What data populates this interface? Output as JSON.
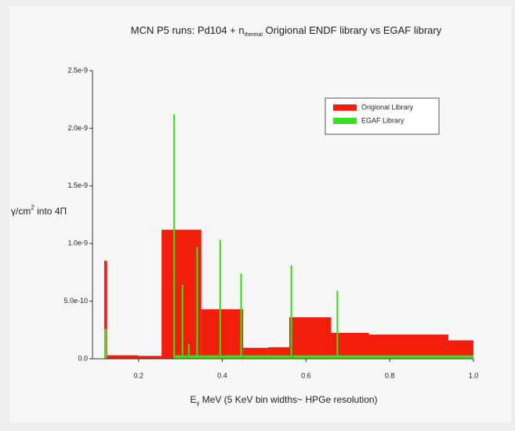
{
  "chart_data": {
    "type": "histogram",
    "title": [
      "MCN P5 runs: Pd104 + n",
      "thermal",
      " Origional ENDF library vs EGAF library"
    ],
    "ylabel": [
      "γ/cm",
      "2",
      " into 4Π"
    ],
    "xlabel": [
      "E",
      "γ",
      " MeV (5 KeV bin widths~ HPGe resolution)"
    ],
    "xlim": [
      0.09,
      1.0
    ],
    "ylim": [
      0,
      2.5e-09
    ],
    "xticks": [
      0.2,
      0.4,
      0.6,
      0.8,
      {
        "value": 1.0,
        "label": "1.0"
      }
    ],
    "yticks": [
      {
        "value": 0,
        "label": "0.0"
      },
      {
        "value": 5e-10,
        "label": "5.0e-10"
      },
      {
        "value": 1e-09,
        "label": "1.0e-9"
      },
      {
        "value": 1.5e-09,
        "label": "1.5e-9"
      },
      {
        "value": 2e-09,
        "label": "2.0e-9"
      },
      {
        "value": 2.5e-09,
        "label": "2.5e-9"
      }
    ],
    "legend": "upper right",
    "series": [
      {
        "name": "Origional Library",
        "color": "#f01e0a",
        "bins": [
          0.118,
          0.125,
          0.2,
          0.255,
          0.35,
          0.45,
          0.51,
          0.56,
          0.66,
          0.75,
          0.94,
          1.0
        ],
        "values": [
          8.5e-10,
          3e-11,
          2.5e-11,
          1.12e-09,
          4.3e-10,
          9.5e-11,
          1e-10,
          3.6e-10,
          2.25e-10,
          2.1e-10,
          1.6e-10
        ]
      },
      {
        "name": "EGAF Library",
        "color": "#3cdc1e",
        "bins": [
          0.118,
          0.124,
          0.283,
          0.287,
          0.303,
          0.307,
          0.318,
          0.322,
          0.338,
          0.342,
          0.393,
          0.397,
          0.443,
          0.447,
          0.563,
          0.567,
          0.673,
          0.677,
          1.0
        ],
        "values": [
          2.6e-10,
          0,
          2.12e-09,
          3e-11,
          6.4e-10,
          3e-11,
          1.3e-10,
          3e-11,
          9.7e-10,
          3e-11,
          1.03e-09,
          3e-11,
          7.4e-10,
          3e-11,
          8.1e-10,
          3e-11,
          5.9e-10,
          3e-11
        ]
      }
    ]
  }
}
